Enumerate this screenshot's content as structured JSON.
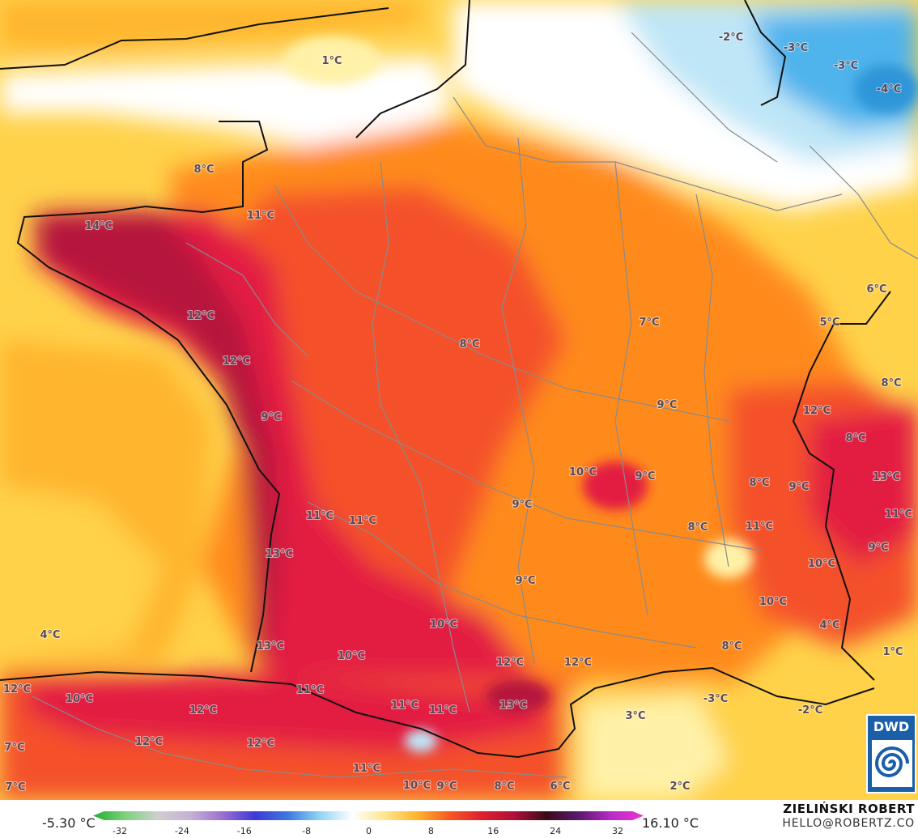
{
  "map": {
    "temperature_labels": [
      "1°C",
      "-2°C",
      "-3°C",
      "-3°C",
      "-4°C",
      "8°C",
      "11°C",
      "14°C",
      "6°C",
      "12°C",
      "5°C",
      "7°C",
      "8°C",
      "12°C",
      "8°C",
      "9°C",
      "12°C",
      "9°C",
      "8°C",
      "10°C",
      "9°C",
      "13°C",
      "8°C",
      "9°C",
      "11°C",
      "11°C",
      "9°C",
      "11°C",
      "8°C",
      "9°C",
      "13°C",
      "10°C",
      "9°C",
      "11°C",
      "10°C",
      "4°C",
      "4°C",
      "13°C",
      "10°C",
      "8°C",
      "12°C",
      "12°C",
      "10°C",
      "1°C",
      "12°C",
      "10°C",
      "11°C",
      "-3°C",
      "-2°C",
      "11°C",
      "13°C",
      "11°C",
      "3°C",
      "12°C",
      "12°C",
      "7°C",
      "12°C",
      "12°C",
      "11°C",
      "7°C",
      "10°C",
      "9°C",
      "8°C",
      "6°C",
      "2°C"
    ],
    "colors": {
      "cold_blue": "#4fb3ec",
      "light_blue": "#bfe6f7",
      "white": "#ffffff",
      "light_yellow": "#fff2a8",
      "yellow": "#ffd24a",
      "orange": "#ff8a1e",
      "red_orange": "#f4512a",
      "crimson": "#e31b42",
      "dark_red": "#b5123e"
    }
  },
  "legend": {
    "min_label": "-5.30 °C",
    "max_label": "16.10 °C",
    "ticks": [
      "-32",
      "-24",
      "-16",
      "-8",
      "0",
      "8",
      "16",
      "24",
      "32"
    ],
    "gradient": [
      "#1fb02e",
      "#7fd17f",
      "#cfcfcf",
      "#c6b1d6",
      "#9b6fd0",
      "#3e39d6",
      "#3d77e0",
      "#8fd5f3",
      "#ffffff",
      "#ffe68c",
      "#ffb52e",
      "#f45a22",
      "#e0202e",
      "#b0103a",
      "#3b0a18",
      "#5a1a6e",
      "#b82cc6",
      "#f030d8"
    ]
  },
  "credit": {
    "name": "ZIELIŃSKI ROBERT",
    "email": "HELLO@ROBERTZ.CO"
  },
  "logo": {
    "text": "DWD"
  }
}
